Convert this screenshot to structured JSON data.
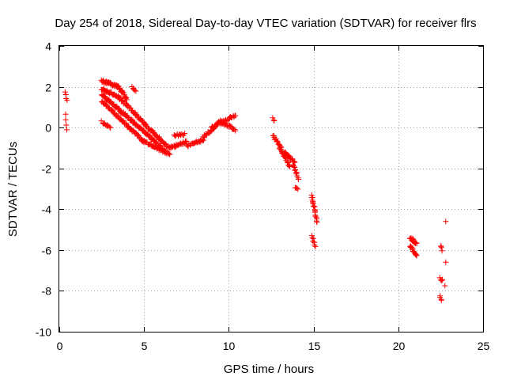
{
  "chart_data": {
    "type": "scatter",
    "title": "Day 254 of 2018, Sidereal Day-to-day VTEC variation (SDTVAR) for receiver flrs",
    "xlabel": "GPS time / hours",
    "ylabel": "SDTVAR / TECUs",
    "xlim": [
      0,
      25
    ],
    "ylim": [
      -10,
      4
    ],
    "xticks": [
      0,
      5,
      10,
      15,
      20,
      25
    ],
    "yticks": [
      -10,
      -8,
      -6,
      -4,
      -2,
      0,
      2,
      4
    ],
    "grid": true,
    "marker": "+",
    "color": "#ff0000",
    "segments": [
      {
        "x0": 0.35,
        "x1": 0.45,
        "y0": 1.8,
        "y1": 1.3,
        "n": 4
      },
      {
        "x0": 0.35,
        "x1": 0.45,
        "y0": 0.6,
        "y1": -0.1,
        "n": 4
      },
      {
        "x0": 2.5,
        "x1": 3.5,
        "y0": 2.3,
        "y1": 2.0,
        "n": 40
      },
      {
        "x0": 3.5,
        "x1": 4.0,
        "y0": 2.0,
        "y1": 1.4,
        "n": 15
      },
      {
        "x0": 4.3,
        "x1": 4.5,
        "y0": 2.0,
        "y1": 1.8,
        "n": 6
      },
      {
        "x0": 2.5,
        "x1": 3.5,
        "y0": 1.9,
        "y1": 1.5,
        "n": 30
      },
      {
        "x0": 3.5,
        "x1": 5.0,
        "y0": 1.5,
        "y1": 0.2,
        "n": 40
      },
      {
        "x0": 5.0,
        "x1": 6.5,
        "y0": 0.2,
        "y1": -1.0,
        "n": 40
      },
      {
        "x0": 2.5,
        "x1": 3.5,
        "y0": 1.6,
        "y1": 0.9,
        "n": 30
      },
      {
        "x0": 3.5,
        "x1": 5.0,
        "y0": 0.9,
        "y1": -0.2,
        "n": 40
      },
      {
        "x0": 5.0,
        "x1": 6.3,
        "y0": -0.2,
        "y1": -1.2,
        "n": 35
      },
      {
        "x0": 2.5,
        "x1": 3.5,
        "y0": 1.3,
        "y1": 0.5,
        "n": 25
      },
      {
        "x0": 3.5,
        "x1": 5.0,
        "y0": 0.5,
        "y1": -0.7,
        "n": 40
      },
      {
        "x0": 5.0,
        "x1": 6.5,
        "y0": -0.7,
        "y1": -1.3,
        "n": 35
      },
      {
        "x0": 2.5,
        "x1": 3.0,
        "y0": 0.3,
        "y1": 0.0,
        "n": 12
      },
      {
        "x0": 6.5,
        "x1": 7.5,
        "y0": -1.0,
        "y1": -0.7,
        "n": 25
      },
      {
        "x0": 6.8,
        "x1": 7.4,
        "y0": -0.4,
        "y1": -0.3,
        "n": 12
      },
      {
        "x0": 7.5,
        "x1": 8.5,
        "y0": -0.9,
        "y1": -0.6,
        "n": 25
      },
      {
        "x0": 8.5,
        "x1": 9.5,
        "y0": -0.5,
        "y1": 0.3,
        "n": 25
      },
      {
        "x0": 9.0,
        "x1": 10.4,
        "y0": 0.0,
        "y1": 0.6,
        "n": 30
      },
      {
        "x0": 9.5,
        "x1": 10.4,
        "y0": 0.3,
        "y1": -0.1,
        "n": 20
      },
      {
        "x0": 12.6,
        "x1": 12.7,
        "y0": 0.45,
        "y1": 0.35,
        "n": 3
      },
      {
        "x0": 12.6,
        "x1": 13.1,
        "y0": -0.4,
        "y1": -1.0,
        "n": 15
      },
      {
        "x0": 13.0,
        "x1": 13.6,
        "y0": -1.0,
        "y1": -1.9,
        "n": 25
      },
      {
        "x0": 13.3,
        "x1": 13.9,
        "y0": -1.2,
        "y1": -1.7,
        "n": 20
      },
      {
        "x0": 13.8,
        "x1": 14.1,
        "y0": -1.8,
        "y1": -2.5,
        "n": 12
      },
      {
        "x0": 13.9,
        "x1": 14.1,
        "y0": -2.9,
        "y1": -3.0,
        "n": 4
      },
      {
        "x0": 14.9,
        "x1": 15.2,
        "y0": -3.3,
        "y1": -4.6,
        "n": 20
      },
      {
        "x0": 14.9,
        "x1": 15.1,
        "y0": -5.3,
        "y1": -5.8,
        "n": 8
      },
      {
        "x0": 20.7,
        "x1": 21.1,
        "y0": -5.4,
        "y1": -5.7,
        "n": 15
      },
      {
        "x0": 20.7,
        "x1": 21.1,
        "y0": -5.8,
        "y1": -6.3,
        "n": 15
      },
      {
        "x0": 22.5,
        "x1": 22.6,
        "y0": -5.8,
        "y1": -6.0,
        "n": 4
      },
      {
        "x0": 22.45,
        "x1": 22.6,
        "y0": -7.4,
        "y1": -7.5,
        "n": 4
      },
      {
        "x0": 22.45,
        "x1": 22.55,
        "y0": -8.3,
        "y1": -8.45,
        "n": 4
      },
      {
        "x0": 22.8,
        "x1": 22.8,
        "y0": -4.6,
        "y1": -4.6,
        "n": 1
      },
      {
        "x0": 22.8,
        "x1": 22.8,
        "y0": -6.6,
        "y1": -6.6,
        "n": 1
      },
      {
        "x0": 22.75,
        "x1": 22.75,
        "y0": -7.75,
        "y1": -7.75,
        "n": 1
      }
    ]
  }
}
